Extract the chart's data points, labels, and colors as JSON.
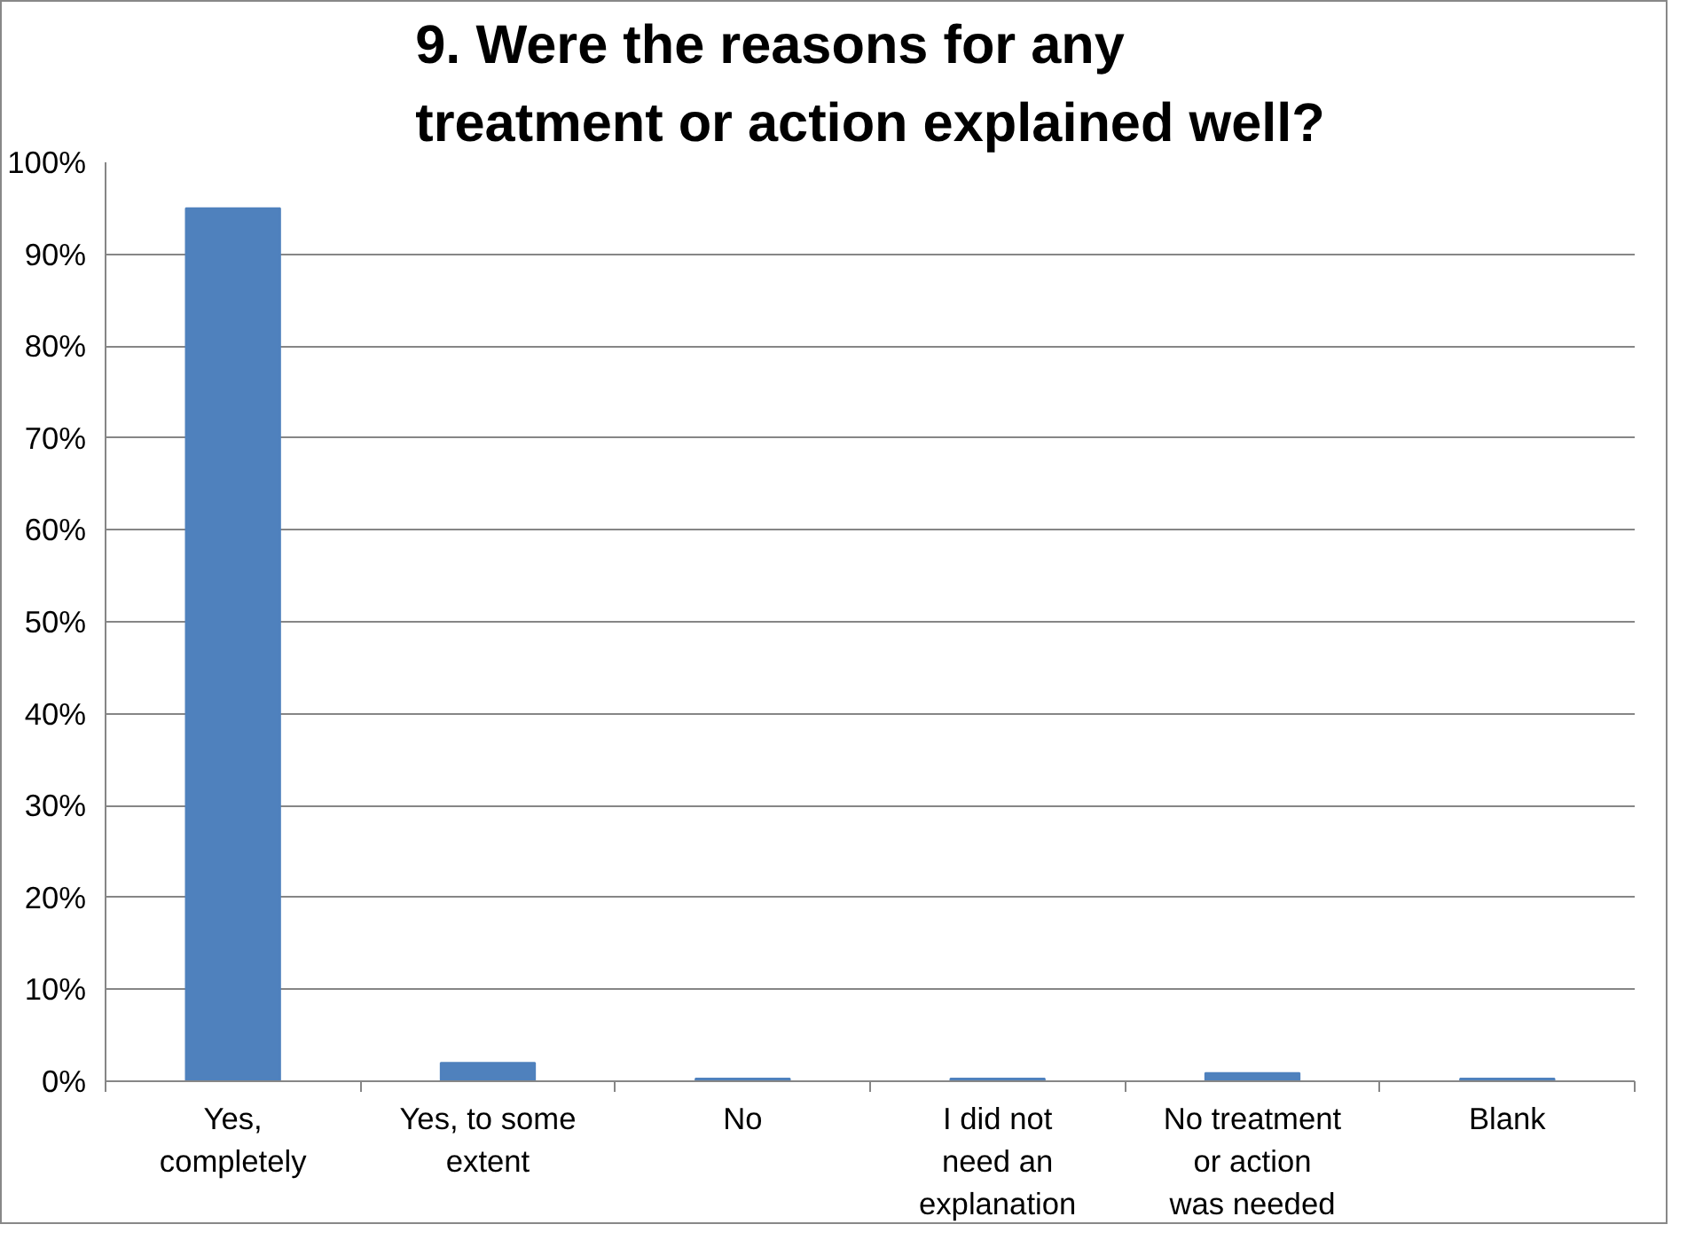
{
  "chart_data": {
    "type": "bar",
    "title": "9. Were the reasons for any treatment or action explained well?",
    "categories": [
      "Yes, completely",
      "Yes, to some extent",
      "No",
      "I did not need an explanation",
      "No treatment or action was needed",
      "Blank"
    ],
    "values": [
      95,
      2,
      0.3,
      0.3,
      0.9,
      0.3
    ],
    "color": "#4f81bd",
    "ylim": [
      0,
      100
    ],
    "yticks": [
      {
        "value": 0,
        "label": "0%"
      },
      {
        "value": 10,
        "label": "10%"
      },
      {
        "value": 20,
        "label": "20%"
      },
      {
        "value": 30,
        "label": "30%"
      },
      {
        "value": 40,
        "label": "40%"
      },
      {
        "value": 50,
        "label": "50%"
      },
      {
        "value": 60,
        "label": "60%"
      },
      {
        "value": 70,
        "label": "70%"
      },
      {
        "value": 80,
        "label": "80%"
      },
      {
        "value": 90,
        "label": "90%"
      },
      {
        "value": 100,
        "label": "100%"
      }
    ],
    "grid": "y"
  }
}
